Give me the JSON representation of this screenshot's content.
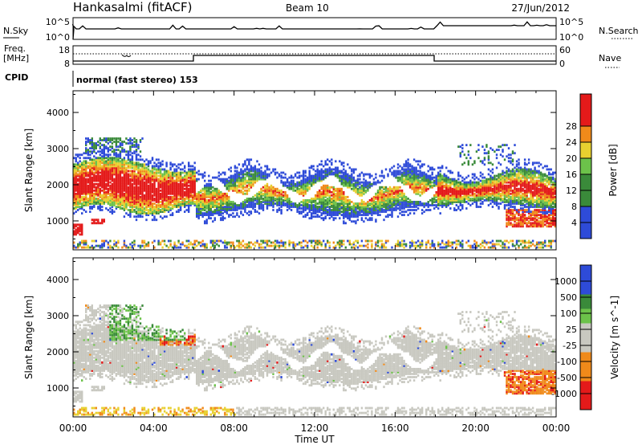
{
  "header": {
    "station": "Hankasalmi (fitACF)",
    "beam": "Beam 10",
    "date": "27/Jun/2012"
  },
  "noise_panel": {
    "left_label": "N.Sky",
    "right_label": "N.Search",
    "left_ticks": [
      "10^5",
      "10^0"
    ],
    "right_ticks": [
      "10^5",
      "10^0"
    ]
  },
  "freq_panel": {
    "left_label_1": "Freq.",
    "left_label_2": "[MHz]",
    "right_label": "Nave",
    "left_ticks": [
      "18",
      "8"
    ],
    "right_ticks": [
      "60",
      "0"
    ]
  },
  "cpid": {
    "label": "CPID",
    "value": "normal (fast stereo) 153"
  },
  "x_axis": {
    "title": "Time UT",
    "ticks": [
      "00:00",
      "04:00",
      "08:00",
      "12:00",
      "16:00",
      "20:00",
      "00:00"
    ]
  },
  "colors": {
    "blue": "#2e4bd8",
    "darkgreen": "#3a8a3a",
    "green": "#6cc24a",
    "yellow": "#e8d030",
    "orange": "#f08a1a",
    "red": "#e41a1a",
    "grey": "#c8c8c0"
  },
  "chart_data": [
    {
      "type": "heatmap",
      "title": "Power",
      "xlabel": "",
      "ylabel": "Slant Range [km]",
      "x_range_hours": [
        0,
        24
      ],
      "yticks": [
        "1000",
        "2000",
        "3000",
        "4000"
      ],
      "ylim": [
        200,
        4600
      ],
      "colorbar": {
        "label": "Power [dB]",
        "ticks": [
          "4",
          "8",
          "12",
          "16",
          "20",
          "24",
          "28"
        ],
        "range": [
          0,
          32
        ]
      }
    },
    {
      "type": "heatmap",
      "title": "Velocity",
      "xlabel": "Time UT",
      "ylabel": "Slant Range [km]",
      "x_range_hours": [
        0,
        24
      ],
      "yticks": [
        "1000",
        "2000",
        "3000",
        "4000"
      ],
      "ylim": [
        200,
        4600
      ],
      "colorbar": {
        "label": "Velocity [m s^-1]",
        "ticks": [
          "1000",
          "500",
          "100",
          "25",
          "-25",
          "-100",
          "-500",
          "-1000"
        ]
      }
    }
  ]
}
